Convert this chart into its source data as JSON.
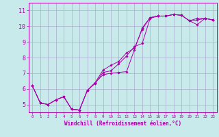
{
  "title": "",
  "xlabel": "Windchill (Refroidissement éolien,°C)",
  "bg_color": "#c8eaea",
  "grid_color": "#aaaacc",
  "line_color": "#aa00aa",
  "xlim": [
    -0.5,
    23.5
  ],
  "ylim": [
    4.5,
    11.5
  ],
  "yticks": [
    5,
    6,
    7,
    8,
    9,
    10,
    11
  ],
  "xticks": [
    0,
    1,
    2,
    3,
    4,
    5,
    6,
    7,
    8,
    9,
    10,
    11,
    12,
    13,
    14,
    15,
    16,
    17,
    18,
    19,
    20,
    21,
    22,
    23
  ],
  "series": [
    [
      6.2,
      5.1,
      5.0,
      5.3,
      5.5,
      4.7,
      4.65,
      5.9,
      6.4,
      6.9,
      7.0,
      7.05,
      7.1,
      8.5,
      9.9,
      10.55,
      10.65,
      10.65,
      10.75,
      10.7,
      10.35,
      10.1,
      10.5,
      10.4
    ],
    [
      6.2,
      5.1,
      5.0,
      5.3,
      5.5,
      4.7,
      4.65,
      5.9,
      6.35,
      7.05,
      7.15,
      7.6,
      8.1,
      8.7,
      8.9,
      10.5,
      10.65,
      10.65,
      10.75,
      10.7,
      10.35,
      10.5,
      10.5,
      10.4
    ],
    [
      6.2,
      5.1,
      5.0,
      5.3,
      5.5,
      4.7,
      4.65,
      5.9,
      6.4,
      7.2,
      7.5,
      7.75,
      8.3,
      8.6,
      9.8,
      10.55,
      10.65,
      10.65,
      10.75,
      10.7,
      10.35,
      10.4,
      10.5,
      10.4
    ]
  ],
  "xlabel_fontsize": 5.5,
  "ytick_fontsize": 6.0,
  "xtick_fontsize": 4.2
}
